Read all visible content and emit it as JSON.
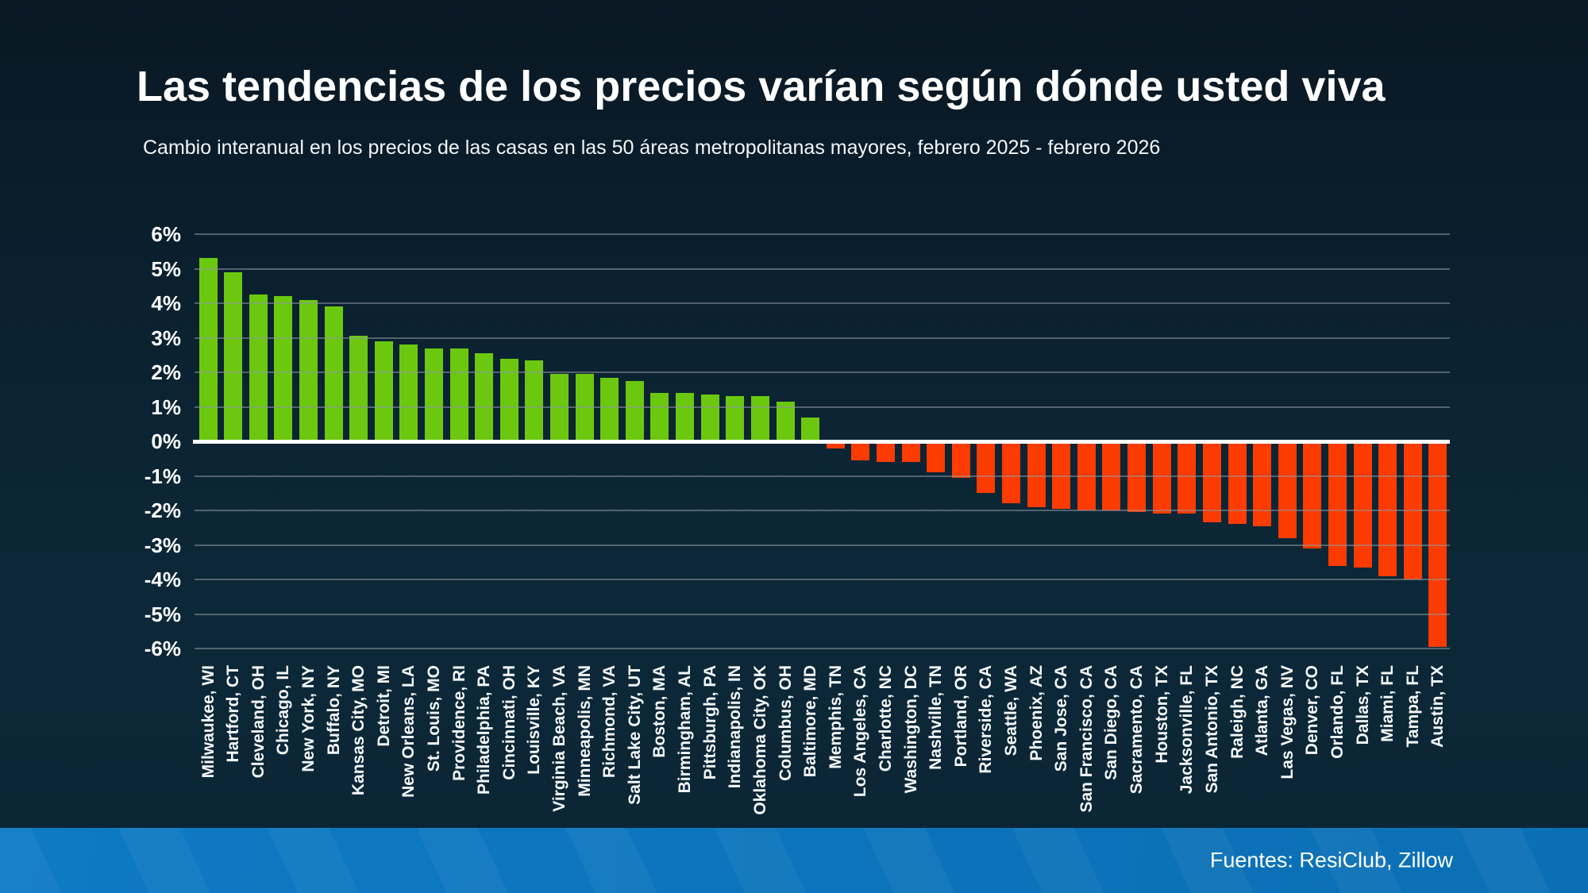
{
  "page": {
    "title": "Las tendencias de los precios varían según dónde usted viva",
    "subtitle": "Cambio interanual en los precios de las casas en las 50 áreas metropolitanas mayores, febrero 2025 - febrero 2026",
    "source": "Fuentes: ResiClub, Zillow"
  },
  "colors": {
    "positive_bar": "#6bc80f",
    "negative_bar": "#fc3b00",
    "background_top": "#091823",
    "background_bottom": "#0b2534",
    "zero_axis": "#ffffff",
    "footer_band_blue": "#0c76c0",
    "text": "#ffffff"
  },
  "chart_data": {
    "type": "bar",
    "title": "Las tendencias de los precios varían según dónde usted viva",
    "subtitle": "Cambio interanual en los precios de las casas en las 50 áreas metropolitanas mayores, febrero 2025 - febrero 2026",
    "xlabel": "",
    "ylabel": "",
    "ylim": [
      -6,
      6
    ],
    "yticks": [
      6,
      5,
      4,
      3,
      2,
      1,
      0,
      -1,
      -2,
      -3,
      -4,
      -5,
      -6
    ],
    "ytick_suffix": "%",
    "grid": true,
    "legend": null,
    "category_label_rotation": 90,
    "categories": [
      "Milwaukee, WI",
      "Hartford, CT",
      "Cleveland, OH",
      "Chicago, IL",
      "New York, NY",
      "Buffalo, NY",
      "Kansas City, MO",
      "Detroit, MI",
      "New Orleans, LA",
      "St. Louis, MO",
      "Providence, RI",
      "Philadelphia, PA",
      "Cincinnati, OH",
      "Louisville, KY",
      "Virginia Beach, VA",
      "Minneapolis, MN",
      "Richmond, VA",
      "Salt Lake City, UT",
      "Boston, MA",
      "Birmingham, AL",
      "Pittsburgh, PA",
      "Indianapolis, IN",
      "Oklahoma City, OK",
      "Columbus, OH",
      "Baltimore, MD",
      "Memphis, TN",
      "Los Angeles, CA",
      "Charlotte, NC",
      "Washington, DC",
      "Nashville, TN",
      "Portland, OR",
      "Riverside, CA",
      "Seattle, WA",
      "Phoenix, AZ",
      "San Jose, CA",
      "San Francisco, CA",
      "San Diego, CA",
      "Sacramento, CA",
      "Houston, TX",
      "Jacksonville, FL",
      "San Antonio, TX",
      "Raleigh, NC",
      "Atlanta, GA",
      "Las Vegas, NV",
      "Denver, CO",
      "Orlando, FL",
      "Dallas, TX",
      "Miami, FL",
      "Tampa, FL",
      "Austin, TX"
    ],
    "values": [
      5.3,
      4.9,
      4.25,
      4.2,
      4.1,
      3.9,
      3.05,
      2.9,
      2.8,
      2.7,
      2.7,
      2.55,
      2.4,
      2.35,
      1.95,
      1.95,
      1.85,
      1.75,
      1.4,
      1.4,
      1.35,
      1.3,
      1.3,
      1.15,
      0.7,
      -0.2,
      -0.55,
      -0.6,
      -0.6,
      -0.9,
      -1.05,
      -1.5,
      -1.8,
      -1.9,
      -1.95,
      -2.0,
      -2.0,
      -2.05,
      -2.1,
      -2.1,
      -2.35,
      -2.4,
      -2.45,
      -2.8,
      -3.1,
      -3.6,
      -3.65,
      -3.9,
      -4.0,
      -5.95
    ]
  }
}
